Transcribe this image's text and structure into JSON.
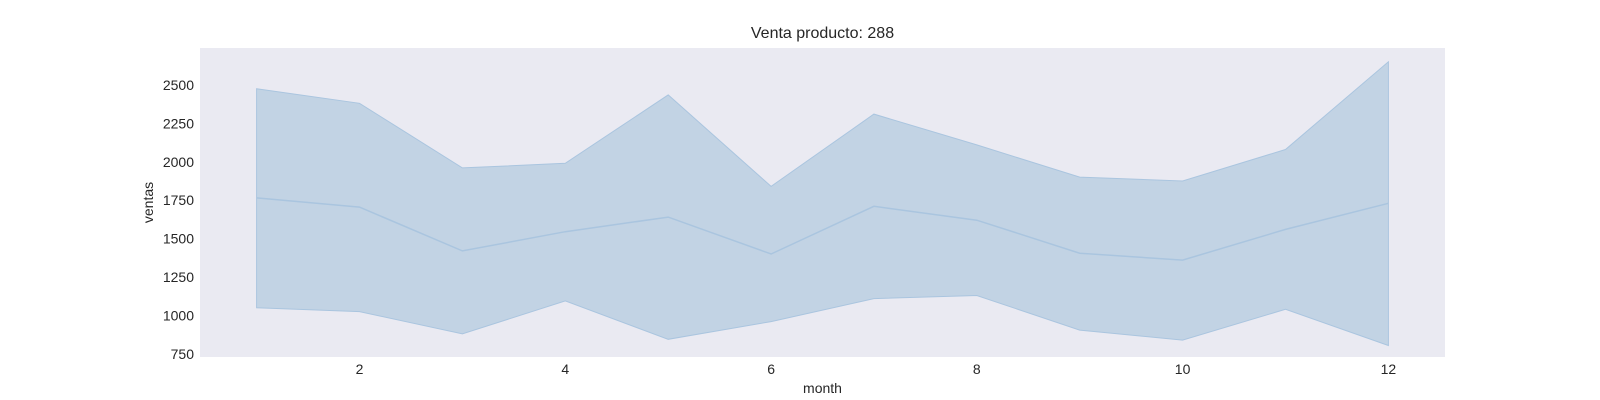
{
  "chart_data": {
    "type": "line",
    "title": "Venta producto: 288",
    "xlabel": "month",
    "ylabel": "ventas",
    "xlim": [
      0.45,
      12.55
    ],
    "ylim": [
      730,
      2740
    ],
    "xticks": [
      2,
      4,
      6,
      8,
      10,
      12
    ],
    "yticks": [
      750,
      1000,
      1250,
      1500,
      1750,
      2000,
      2250,
      2500
    ],
    "grid": false,
    "background_color": "#eaeaf2",
    "series": [
      {
        "x": [
          1,
          2,
          3,
          4,
          5,
          6,
          7,
          8,
          9,
          10,
          11,
          12
        ],
        "values": [
          1765,
          1705,
          1420,
          1545,
          1640,
          1400,
          1710,
          1620,
          1405,
          1360,
          1560,
          1730
        ],
        "lower": [
          1050,
          1025,
          880,
          1095,
          845,
          960,
          1110,
          1130,
          905,
          840,
          1040,
          805
        ],
        "upper": [
          2475,
          2380,
          1960,
          1990,
          2435,
          1840,
          2310,
          2110,
          1900,
          1875,
          2080,
          2650
        ],
        "color": "#aac5df",
        "band_color": "#c2d3e4"
      }
    ]
  }
}
